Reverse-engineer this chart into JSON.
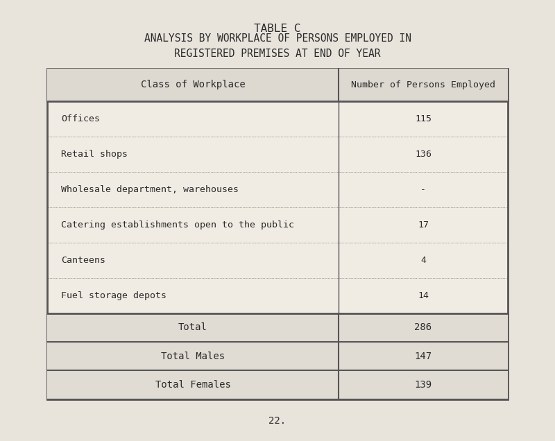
{
  "title_line1": "ANALYSIS BY WORKPLACE OF PERSONS EMPLOYED IN",
  "title_line2": "REGISTERED PREMISES AT END OF YEAR",
  "table_title": "TABLE C",
  "col1_header": "Class of Workplace",
  "col2_header": "Number of Persons Employed",
  "rows": [
    {
      "label": "Offices",
      "value": "115"
    },
    {
      "label": "Retail shops",
      "value": "136"
    },
    {
      "label": "Wholesale department, warehouses",
      "value": "-"
    },
    {
      "label": "Catering establishments open to the public",
      "value": "17"
    },
    {
      "label": "Canteens",
      "value": "4"
    },
    {
      "label": "Fuel storage depots",
      "value": "14"
    }
  ],
  "totals": [
    {
      "label": "Total",
      "value": "286"
    },
    {
      "label": "Total Males",
      "value": "147"
    },
    {
      "label": "Total Females",
      "value": "139"
    }
  ],
  "page_number": "22.",
  "bg_color": "#e8e4dc",
  "table_bg": "#f0ece4",
  "header_bg": "#ddd9d1",
  "total_bg": "#e0dcd4",
  "text_color": "#2a2a2a",
  "border_color": "#555555",
  "font_family": "monospace",
  "title_fontsize": 10.5,
  "header_fontsize": 10,
  "body_fontsize": 9.5,
  "page_fontsize": 10
}
